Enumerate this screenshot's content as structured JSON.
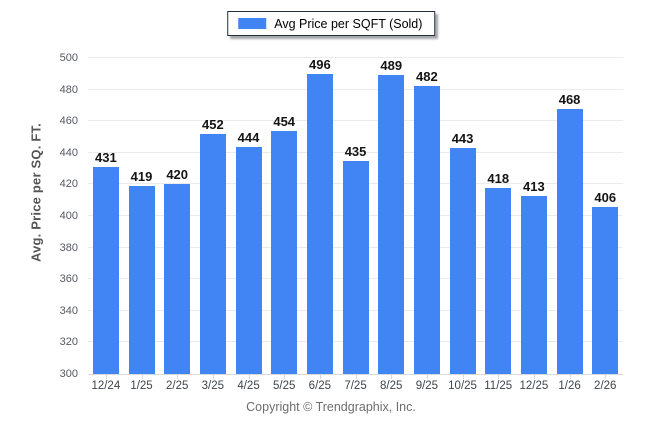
{
  "legend": {
    "label": "Avg Price per SQFT (Sold)",
    "swatch_color": "#4184f4"
  },
  "footer": {
    "copyright": "Copyright © Trendgraphix, Inc."
  },
  "chart_data": {
    "type": "bar",
    "title": "",
    "series_name": "Avg Price per SQFT (Sold)",
    "categories": [
      "12/24",
      "1/25",
      "2/25",
      "3/25",
      "4/25",
      "5/25",
      "6/25",
      "7/25",
      "8/25",
      "9/25",
      "10/25",
      "11/25",
      "12/25",
      "1/26",
      "2/26"
    ],
    "values": [
      431,
      419,
      420,
      452,
      444,
      454,
      496,
      435,
      489,
      482,
      443,
      418,
      413,
      468,
      406
    ],
    "xlabel": "",
    "ylabel": "Avg. Price per SQ. FT.",
    "ylim": [
      300,
      500
    ],
    "ytick_step": 20,
    "yticks": [
      300,
      320,
      340,
      360,
      380,
      400,
      420,
      440,
      460,
      480,
      500
    ],
    "grid": true,
    "legend_position": "top-center",
    "bar_color": "#4184f4",
    "gridline_color": "#ebebeb",
    "value_labels_shown": true
  },
  "colors": {
    "bar": "#4184f4",
    "gridline": "#ebebeb",
    "axis_line": "#d9d9d9",
    "tick_text": "#55595f",
    "value_text": "#141414",
    "footer_text": "#6e6e6e",
    "legend_border": "#22303f"
  }
}
